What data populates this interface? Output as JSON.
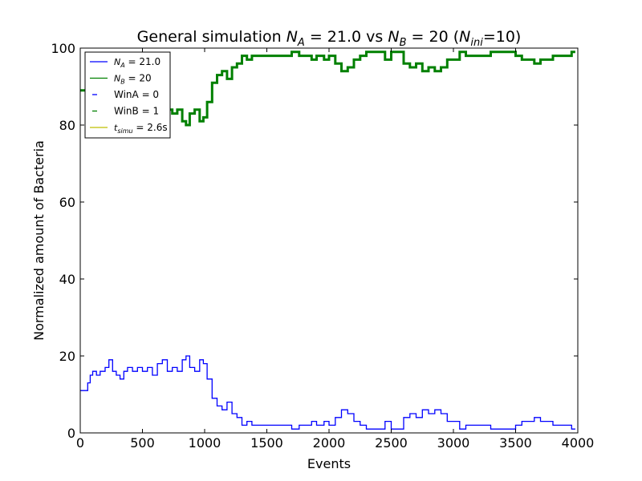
{
  "chart_data": {
    "type": "line",
    "title": "General simulation N_A = 21.0 vs N_B = 20 (N_ini=10)",
    "title_parts": {
      "prefix": "General simulation ",
      "na_sym": "N",
      "na_sub": "A",
      "na_val": " = 21.0 vs ",
      "nb_sym": "N",
      "nb_sub": "B",
      "nb_val": " = 20 (",
      "ni_sym": "N",
      "ni_sub": "ini",
      "ni_val": "=10)"
    },
    "xlabel": "Events",
    "ylabel": "Normalized amount of Bacteria",
    "xlim": [
      0,
      4000
    ],
    "ylim": [
      0,
      100
    ],
    "xticks": [
      0,
      500,
      1000,
      1500,
      2000,
      2500,
      3000,
      3500,
      4000
    ],
    "yticks": [
      0,
      20,
      40,
      60,
      80,
      100
    ],
    "grid": false,
    "legend_position": "top-left",
    "legend": [
      {
        "label": "N_A = 21.0",
        "sym": "N",
        "sub": "A",
        "text": " = 21.0",
        "color": "#0000ff"
      },
      {
        "label": "N_B = 20",
        "sym": "N",
        "sub": "B",
        "text": " = 20",
        "color": "#008000"
      },
      {
        "label": "WinA = 0",
        "sym": "",
        "sub": "",
        "text": "WinA = 0",
        "color": "#0000ff"
      },
      {
        "label": "WinB = 1",
        "sym": "",
        "sub": "",
        "text": "WinB = 1",
        "color": "#008000"
      },
      {
        "label": "t_simu = 2.6s",
        "sym": "t",
        "sub": "simu",
        "text": " = 2.6s",
        "color": "#bfbf00"
      }
    ],
    "series": [
      {
        "name": "N_A = 21.0",
        "color": "#0000ff",
        "x": [
          0,
          30,
          60,
          80,
          100,
          130,
          160,
          200,
          230,
          260,
          290,
          320,
          350,
          380,
          420,
          460,
          500,
          540,
          580,
          620,
          660,
          700,
          740,
          780,
          820,
          850,
          880,
          920,
          960,
          990,
          1020,
          1060,
          1100,
          1140,
          1180,
          1220,
          1260,
          1300,
          1340,
          1380,
          1420,
          1500,
          1600,
          1700,
          1760,
          1800,
          1860,
          1900,
          1960,
          2000,
          2050,
          2100,
          2150,
          2200,
          2250,
          2300,
          2350,
          2400,
          2450,
          2500,
          2550,
          2600,
          2650,
          2700,
          2750,
          2800,
          2850,
          2900,
          2950,
          3000,
          3050,
          3100,
          3200,
          3300,
          3400,
          3500,
          3550,
          3600,
          3650,
          3700,
          3750,
          3800,
          3850,
          3900,
          3950,
          3980
        ],
        "values": [
          11,
          11,
          13,
          15,
          16,
          15,
          16,
          17,
          19,
          16,
          15,
          14,
          16,
          17,
          16,
          17,
          16,
          17,
          15,
          18,
          19,
          16,
          17,
          16,
          19,
          20,
          17,
          16,
          19,
          18,
          14,
          9,
          7,
          6,
          8,
          5,
          4,
          2,
          3,
          2,
          2,
          2,
          2,
          1,
          2,
          2,
          3,
          2,
          3,
          2,
          4,
          6,
          5,
          3,
          2,
          1,
          1,
          1,
          3,
          1,
          1,
          4,
          5,
          4,
          6,
          5,
          6,
          5,
          3,
          3,
          1,
          2,
          2,
          1,
          1,
          2,
          3,
          3,
          4,
          3,
          3,
          2,
          2,
          2,
          1,
          1
        ]
      },
      {
        "name": "N_B = 20",
        "color": "#008000",
        "x": [
          0,
          30,
          60,
          80,
          100,
          130,
          160,
          200,
          230,
          260,
          290,
          320,
          350,
          380,
          420,
          460,
          500,
          540,
          580,
          620,
          660,
          700,
          740,
          780,
          820,
          850,
          880,
          920,
          960,
          990,
          1020,
          1060,
          1100,
          1140,
          1180,
          1220,
          1260,
          1300,
          1340,
          1380,
          1420,
          1500,
          1600,
          1700,
          1760,
          1800,
          1860,
          1900,
          1960,
          2000,
          2050,
          2100,
          2150,
          2200,
          2250,
          2300,
          2350,
          2400,
          2450,
          2500,
          2550,
          2600,
          2650,
          2700,
          2750,
          2800,
          2850,
          2900,
          2950,
          3000,
          3050,
          3100,
          3200,
          3300,
          3400,
          3500,
          3550,
          3600,
          3650,
          3700,
          3750,
          3800,
          3850,
          3900,
          3950,
          3980
        ],
        "values": [
          89,
          89,
          87,
          85,
          84,
          85,
          84,
          83,
          81,
          84,
          85,
          86,
          84,
          83,
          84,
          83,
          84,
          83,
          85,
          82,
          81,
          84,
          83,
          84,
          81,
          80,
          83,
          84,
          81,
          82,
          86,
          91,
          93,
          94,
          92,
          95,
          96,
          98,
          97,
          98,
          98,
          98,
          98,
          99,
          98,
          98,
          97,
          98,
          97,
          98,
          96,
          94,
          95,
          97,
          98,
          99,
          99,
          99,
          97,
          99,
          99,
          96,
          95,
          96,
          94,
          95,
          94,
          95,
          97,
          97,
          99,
          98,
          98,
          99,
          99,
          98,
          97,
          97,
          96,
          97,
          97,
          98,
          98,
          98,
          99,
          99
        ]
      }
    ]
  }
}
